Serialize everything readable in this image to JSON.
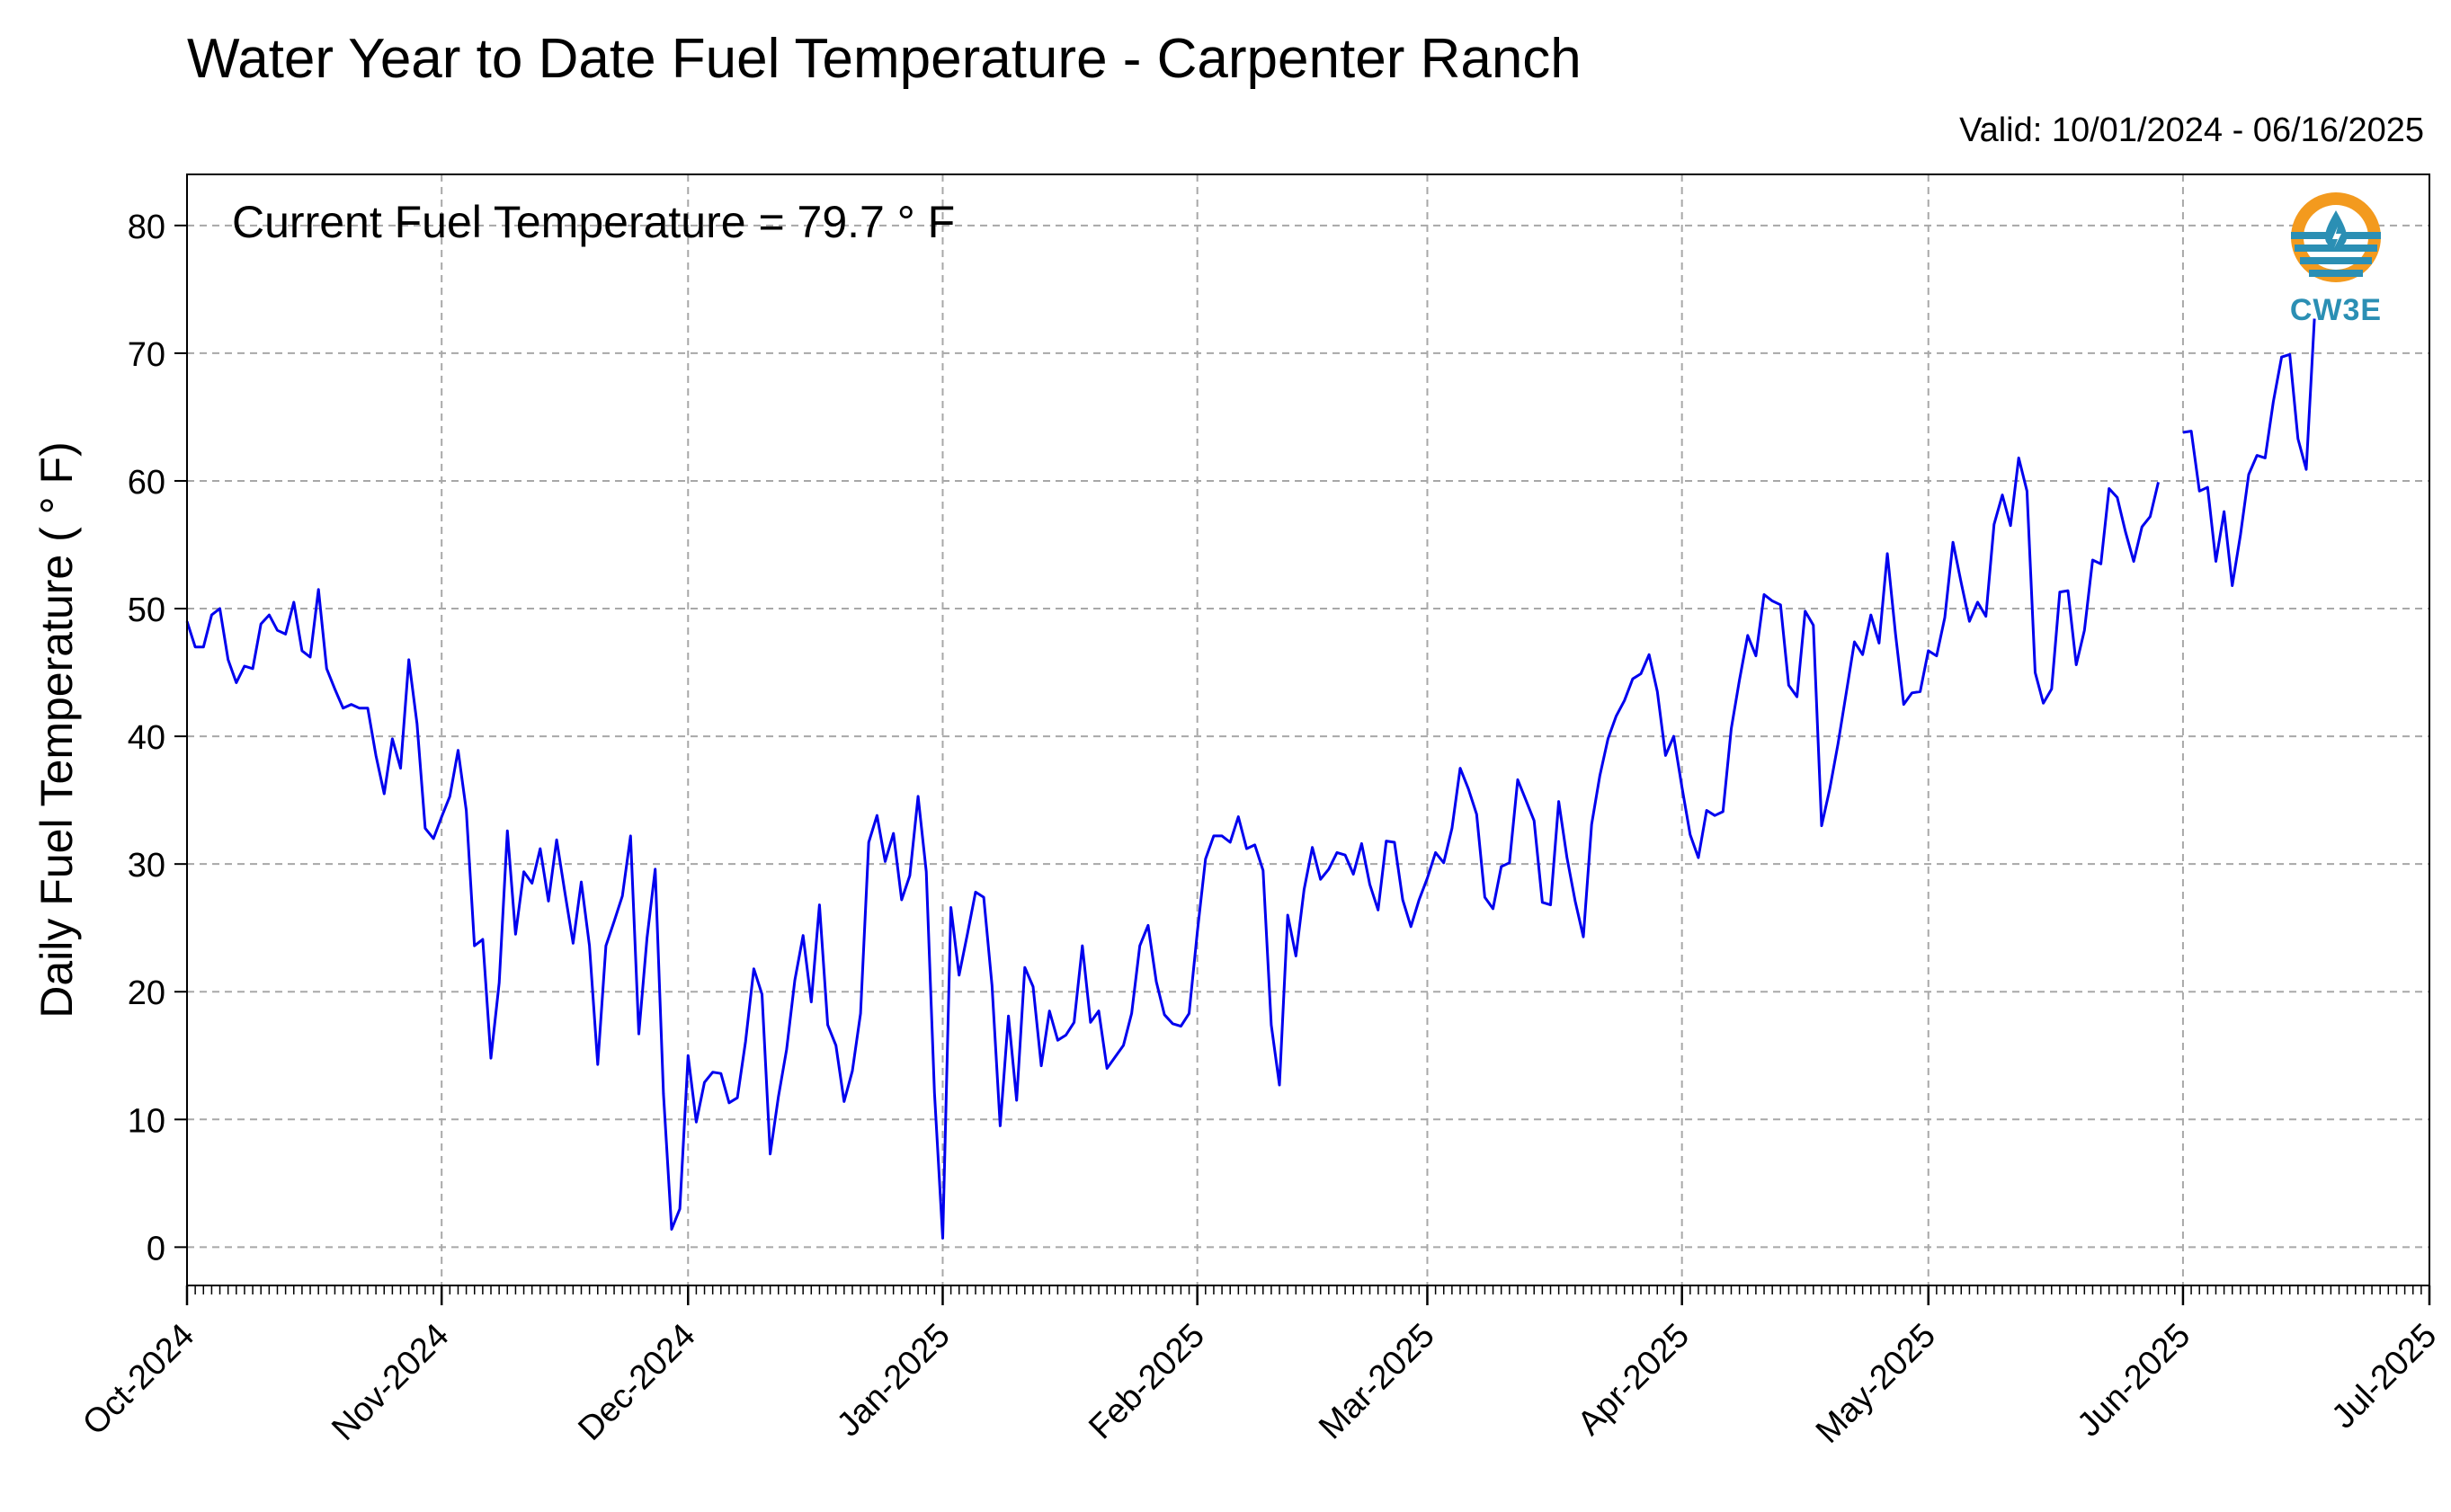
{
  "header": {
    "title": "Water Year to Date Fuel Temperature - Carpenter Ranch",
    "valid": "Valid: 10/01/2024 - 06/16/2025"
  },
  "logo": {
    "text": "CW3E"
  },
  "colors": {
    "series": "#0000ee",
    "grid": "#a8a8a8"
  },
  "chart_data": {
    "type": "line",
    "ylabel": "Daily Fuel Temperature ( ° F)",
    "annotation": "Current Fuel Temperature = 79.7  ° F",
    "ylim": [
      -3,
      84
    ],
    "xlim": [
      "2024-10-01",
      "2025-07-01"
    ],
    "yticks": [
      0,
      10,
      20,
      30,
      40,
      50,
      60,
      70,
      80
    ],
    "xticks": [
      {
        "date": "2024-10-01",
        "label": "Oct-2024"
      },
      {
        "date": "2024-11-01",
        "label": "Nov-2024"
      },
      {
        "date": "2024-12-01",
        "label": "Dec-2024"
      },
      {
        "date": "2025-01-01",
        "label": "Jan-2025"
      },
      {
        "date": "2025-02-01",
        "label": "Feb-2025"
      },
      {
        "date": "2025-03-01",
        "label": "Mar-2025"
      },
      {
        "date": "2025-04-01",
        "label": "Apr-2025"
      },
      {
        "date": "2025-05-01",
        "label": "May-2025"
      },
      {
        "date": "2025-06-01",
        "label": "Jun-2025"
      },
      {
        "date": "2025-07-01",
        "label": "Jul-2025"
      }
    ],
    "grid": true,
    "series": [
      {
        "segments": [
          {
            "start": "2024-10-01",
            "values": [
              49.0,
              47.0,
              47.0,
              49.5,
              50.0,
              46.0,
              44.2,
              45.5,
              45.3,
              48.8,
              49.5,
              48.3,
              48.0,
              50.5,
              46.7,
              46.2,
              51.5,
              45.3,
              43.7,
              42.2,
              42.5,
              42.2,
              42.2,
              38.5,
              35.5,
              39.8,
              37.5,
              46.0,
              41.0,
              32.8,
              32.0,
              33.7,
              35.3,
              38.9,
              34.2,
              23.6,
              24.1,
              14.8,
              20.7,
              32.6,
              24.5,
              29.4,
              28.5,
              31.2,
              27.1,
              31.9,
              27.8,
              23.8,
              28.6,
              23.6,
              14.3,
              23.6,
              25.5,
              27.5,
              32.2,
              16.7,
              24.2,
              29.6,
              12.0,
              1.4,
              3.0,
              15.0,
              9.8,
              12.9,
              13.7,
              13.6,
              11.3,
              11.7,
              16.1,
              21.8,
              19.8,
              7.3,
              11.8,
              15.5,
              20.9,
              24.4,
              19.2,
              26.8,
              17.4,
              15.8,
              11.4,
              13.8,
              18.3,
              31.7,
              33.8,
              30.2,
              32.4,
              27.2,
              29.1,
              35.3,
              29.4,
              12.1,
              0.7,
              26.6,
              21.3,
              24.5,
              27.8,
              27.4,
              20.5,
              9.5,
              18.1,
              11.5,
              21.9,
              20.4,
              14.2,
              18.5,
              16.2,
              16.6,
              17.6,
              23.6,
              17.6,
              18.5,
              14.0,
              14.9,
              15.8,
              18.3,
              23.6,
              25.2,
              20.8,
              18.2,
              17.5,
              17.3,
              18.3,
              24.7,
              30.4,
              32.2,
              32.2,
              31.7,
              33.7,
              31.2,
              31.5,
              29.5,
              17.4,
              12.7,
              26.0,
              22.8,
              28.0,
              31.3,
              28.8,
              29.6,
              30.9,
              30.7,
              29.2,
              31.6,
              28.4,
              26.4,
              31.8,
              31.7,
              27.2,
              25.1,
              27.2,
              28.9,
              30.9,
              30.1,
              32.8,
              37.5,
              35.9,
              33.9,
              27.4,
              26.5,
              29.8,
              30.1,
              36.6,
              35.0,
              33.4,
              27.0,
              26.8,
              34.9,
              30.5,
              27.1,
              24.3,
              33.1,
              36.9,
              39.8,
              41.6,
              42.8,
              44.5,
              44.9,
              46.4,
              43.5,
              38.5,
              40.0,
              36.0,
              32.3,
              30.5,
              34.2,
              33.8,
              34.1,
              40.6,
              44.4,
              47.9,
              46.3,
              51.1,
              50.6,
              50.3,
              44.0,
              43.1,
              49.8,
              48.7,
              33.0,
              35.9,
              39.4,
              43.4,
              47.4,
              46.4,
              49.5,
              47.3,
              54.3,
              48.0,
              42.5,
              43.4,
              43.5,
              46.7,
              46.3,
              49.3,
              55.2,
              52.0,
              49.0,
              50.5,
              49.4,
              56.6,
              58.9,
              56.5,
              61.8,
              59.2,
              45.0,
              42.6,
              43.7,
              51.3,
              51.4,
              45.6,
              48.3,
              53.8,
              53.5,
              59.4,
              58.7,
              56.0,
              53.7,
              56.4,
              57.2,
              59.9
            ]
          },
          {
            "start": "2025-06-01",
            "values": [
              63.8,
              63.9,
              59.2,
              59.5,
              53.7,
              57.6,
              51.8,
              55.8,
              60.5,
              62.0,
              61.8,
              66.2,
              69.7,
              69.9,
              63.3,
              60.9,
              72.7
            ]
          }
        ]
      }
    ]
  }
}
